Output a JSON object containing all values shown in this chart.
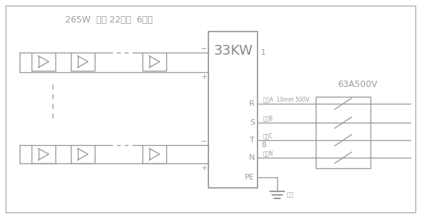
{
  "bg_color": "#ffffff",
  "border_color": "#aaaaaa",
  "line_color": "#999999",
  "title_text": "265W  组件 22串联  6并联",
  "inverter_label": "33KW",
  "breaker_label": "63A500V",
  "ground_label": "地线",
  "labels_ac_text": [
    "相线A  10mm 500V",
    "相线B",
    "相线C",
    "零线N"
  ],
  "lw": 1.0
}
